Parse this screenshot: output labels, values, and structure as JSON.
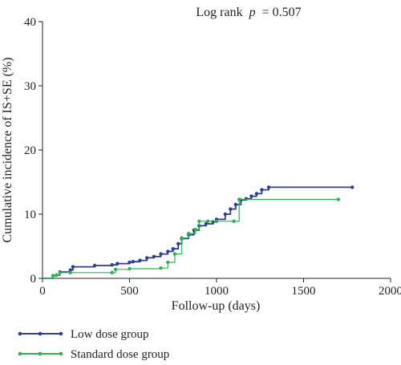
{
  "chart_data": {
    "type": "line",
    "subtype": "step",
    "title_prefix": "Log rank",
    "title_var": "p",
    "title_suffix": "= 0.507",
    "xlabel": "Follow-up (days)",
    "ylabel": "Cumulative incidence of IS+SE (%)",
    "xlim": [
      0,
      2000
    ],
    "ylim": [
      0,
      40
    ],
    "xticks": [
      "0",
      "500",
      "1000",
      "1500",
      "2000"
    ],
    "yticks": [
      "0",
      "10",
      "20",
      "30",
      "40"
    ],
    "grid": false,
    "legend_position": "bottom-left",
    "series": [
      {
        "name": "Low dose group",
        "color": "#2e3d96",
        "x": [
          0,
          60,
          80,
          100,
          160,
          175,
          300,
          400,
          430,
          500,
          520,
          560,
          600,
          640,
          680,
          720,
          750,
          780,
          800,
          840,
          870,
          900,
          940,
          980,
          1000,
          1050,
          1080,
          1110,
          1140,
          1170,
          1200,
          1230,
          1260,
          1300,
          1780
        ],
        "y": [
          0,
          0.4,
          0.5,
          1.0,
          1.3,
          1.8,
          2.0,
          2.1,
          2.3,
          2.5,
          2.6,
          2.8,
          3.2,
          3.4,
          3.8,
          4.2,
          4.6,
          5.4,
          6.2,
          6.8,
          7.5,
          8.2,
          8.5,
          8.8,
          9.2,
          10.0,
          10.8,
          11.5,
          12.2,
          12.4,
          12.8,
          13.2,
          13.8,
          14.2,
          14.2
        ]
      },
      {
        "name": "Standard dose group",
        "color": "#2db34a",
        "x": [
          0,
          60,
          80,
          100,
          160,
          400,
          420,
          500,
          680,
          720,
          760,
          800,
          840,
          880,
          900,
          950,
          1000,
          1100,
          1130,
          1700
        ],
        "y": [
          0,
          0.4,
          0.5,
          0.9,
          0.9,
          0.9,
          1.4,
          1.5,
          1.6,
          2.5,
          3.8,
          6.3,
          7.0,
          7.6,
          8.9,
          8.9,
          8.9,
          8.9,
          12.3,
          12.3
        ]
      }
    ]
  }
}
